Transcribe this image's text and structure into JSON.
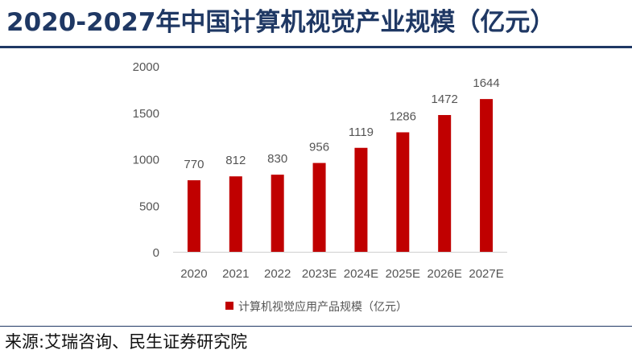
{
  "title": "2020-2027年中国计算机视觉产业规模（亿元）",
  "source": "来源:艾瑞咨询、民生证券研究院",
  "colors": {
    "title": "#1f3864",
    "bar": "#c00000",
    "axis_text": "#555555"
  },
  "chart_data": {
    "type": "bar",
    "categories": [
      "2020",
      "2021",
      "2022",
      "2023E",
      "2024E",
      "2025E",
      "2026E",
      "2027E"
    ],
    "series": [
      {
        "name": "计算机视觉应用产品规模（亿元）",
        "values": [
          770,
          812,
          830,
          956,
          1119,
          1286,
          1472,
          1644
        ]
      }
    ],
    "value_labels": [
      "770",
      "812",
      "830",
      "956",
      "1119",
      "1286",
      "1472",
      "1644"
    ],
    "ylim": [
      0,
      2000
    ],
    "yticks": [
      "0",
      "500",
      "1000",
      "1500",
      "2000"
    ],
    "ytick_values": [
      0,
      500,
      1000,
      1500,
      2000
    ],
    "grid": false,
    "legend_position": "bottom-center"
  }
}
